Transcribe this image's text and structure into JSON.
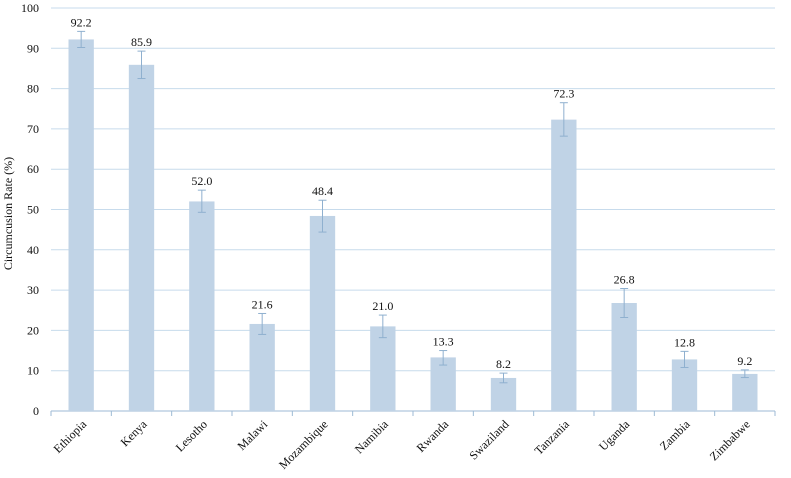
{
  "chart_data": {
    "type": "bar",
    "title": "",
    "xlabel": "",
    "ylabel": "Circumcusion Rate (%)",
    "ylim": [
      0,
      100
    ],
    "yticks": [
      0,
      10,
      20,
      30,
      40,
      50,
      60,
      70,
      80,
      90,
      100
    ],
    "grid": true,
    "categories": [
      "Ethiopia",
      "Kenya",
      "Lesotho",
      "Malawi",
      "Mozambique",
      "Namibia",
      "Rwanda",
      "Swaziland",
      "Tanzania",
      "Uganda",
      "Zambia",
      "Zimbabwe"
    ],
    "values": [
      92.2,
      85.9,
      52.0,
      21.6,
      48.4,
      21.0,
      13.3,
      8.2,
      72.3,
      26.8,
      12.8,
      9.2
    ],
    "value_labels": [
      "92.2",
      "85.9",
      "52.0",
      "21.6",
      "48.4",
      "21.0",
      "13.3",
      "8.2",
      "72.3",
      "26.8",
      "12.8",
      "9.2"
    ],
    "error_low": [
      90.2,
      82.5,
      49.3,
      19.0,
      44.4,
      18.2,
      11.4,
      7.0,
      68.2,
      23.2,
      10.8,
      8.3
    ],
    "error_high": [
      94.2,
      89.3,
      54.8,
      24.2,
      52.3,
      23.8,
      15.0,
      9.4,
      76.5,
      30.4,
      14.8,
      10.2
    ],
    "colors": {
      "bar": "#c0d3e6",
      "error": "#8fb0cf",
      "grid": "#c7dbec",
      "axis": "#9dbad4"
    }
  }
}
